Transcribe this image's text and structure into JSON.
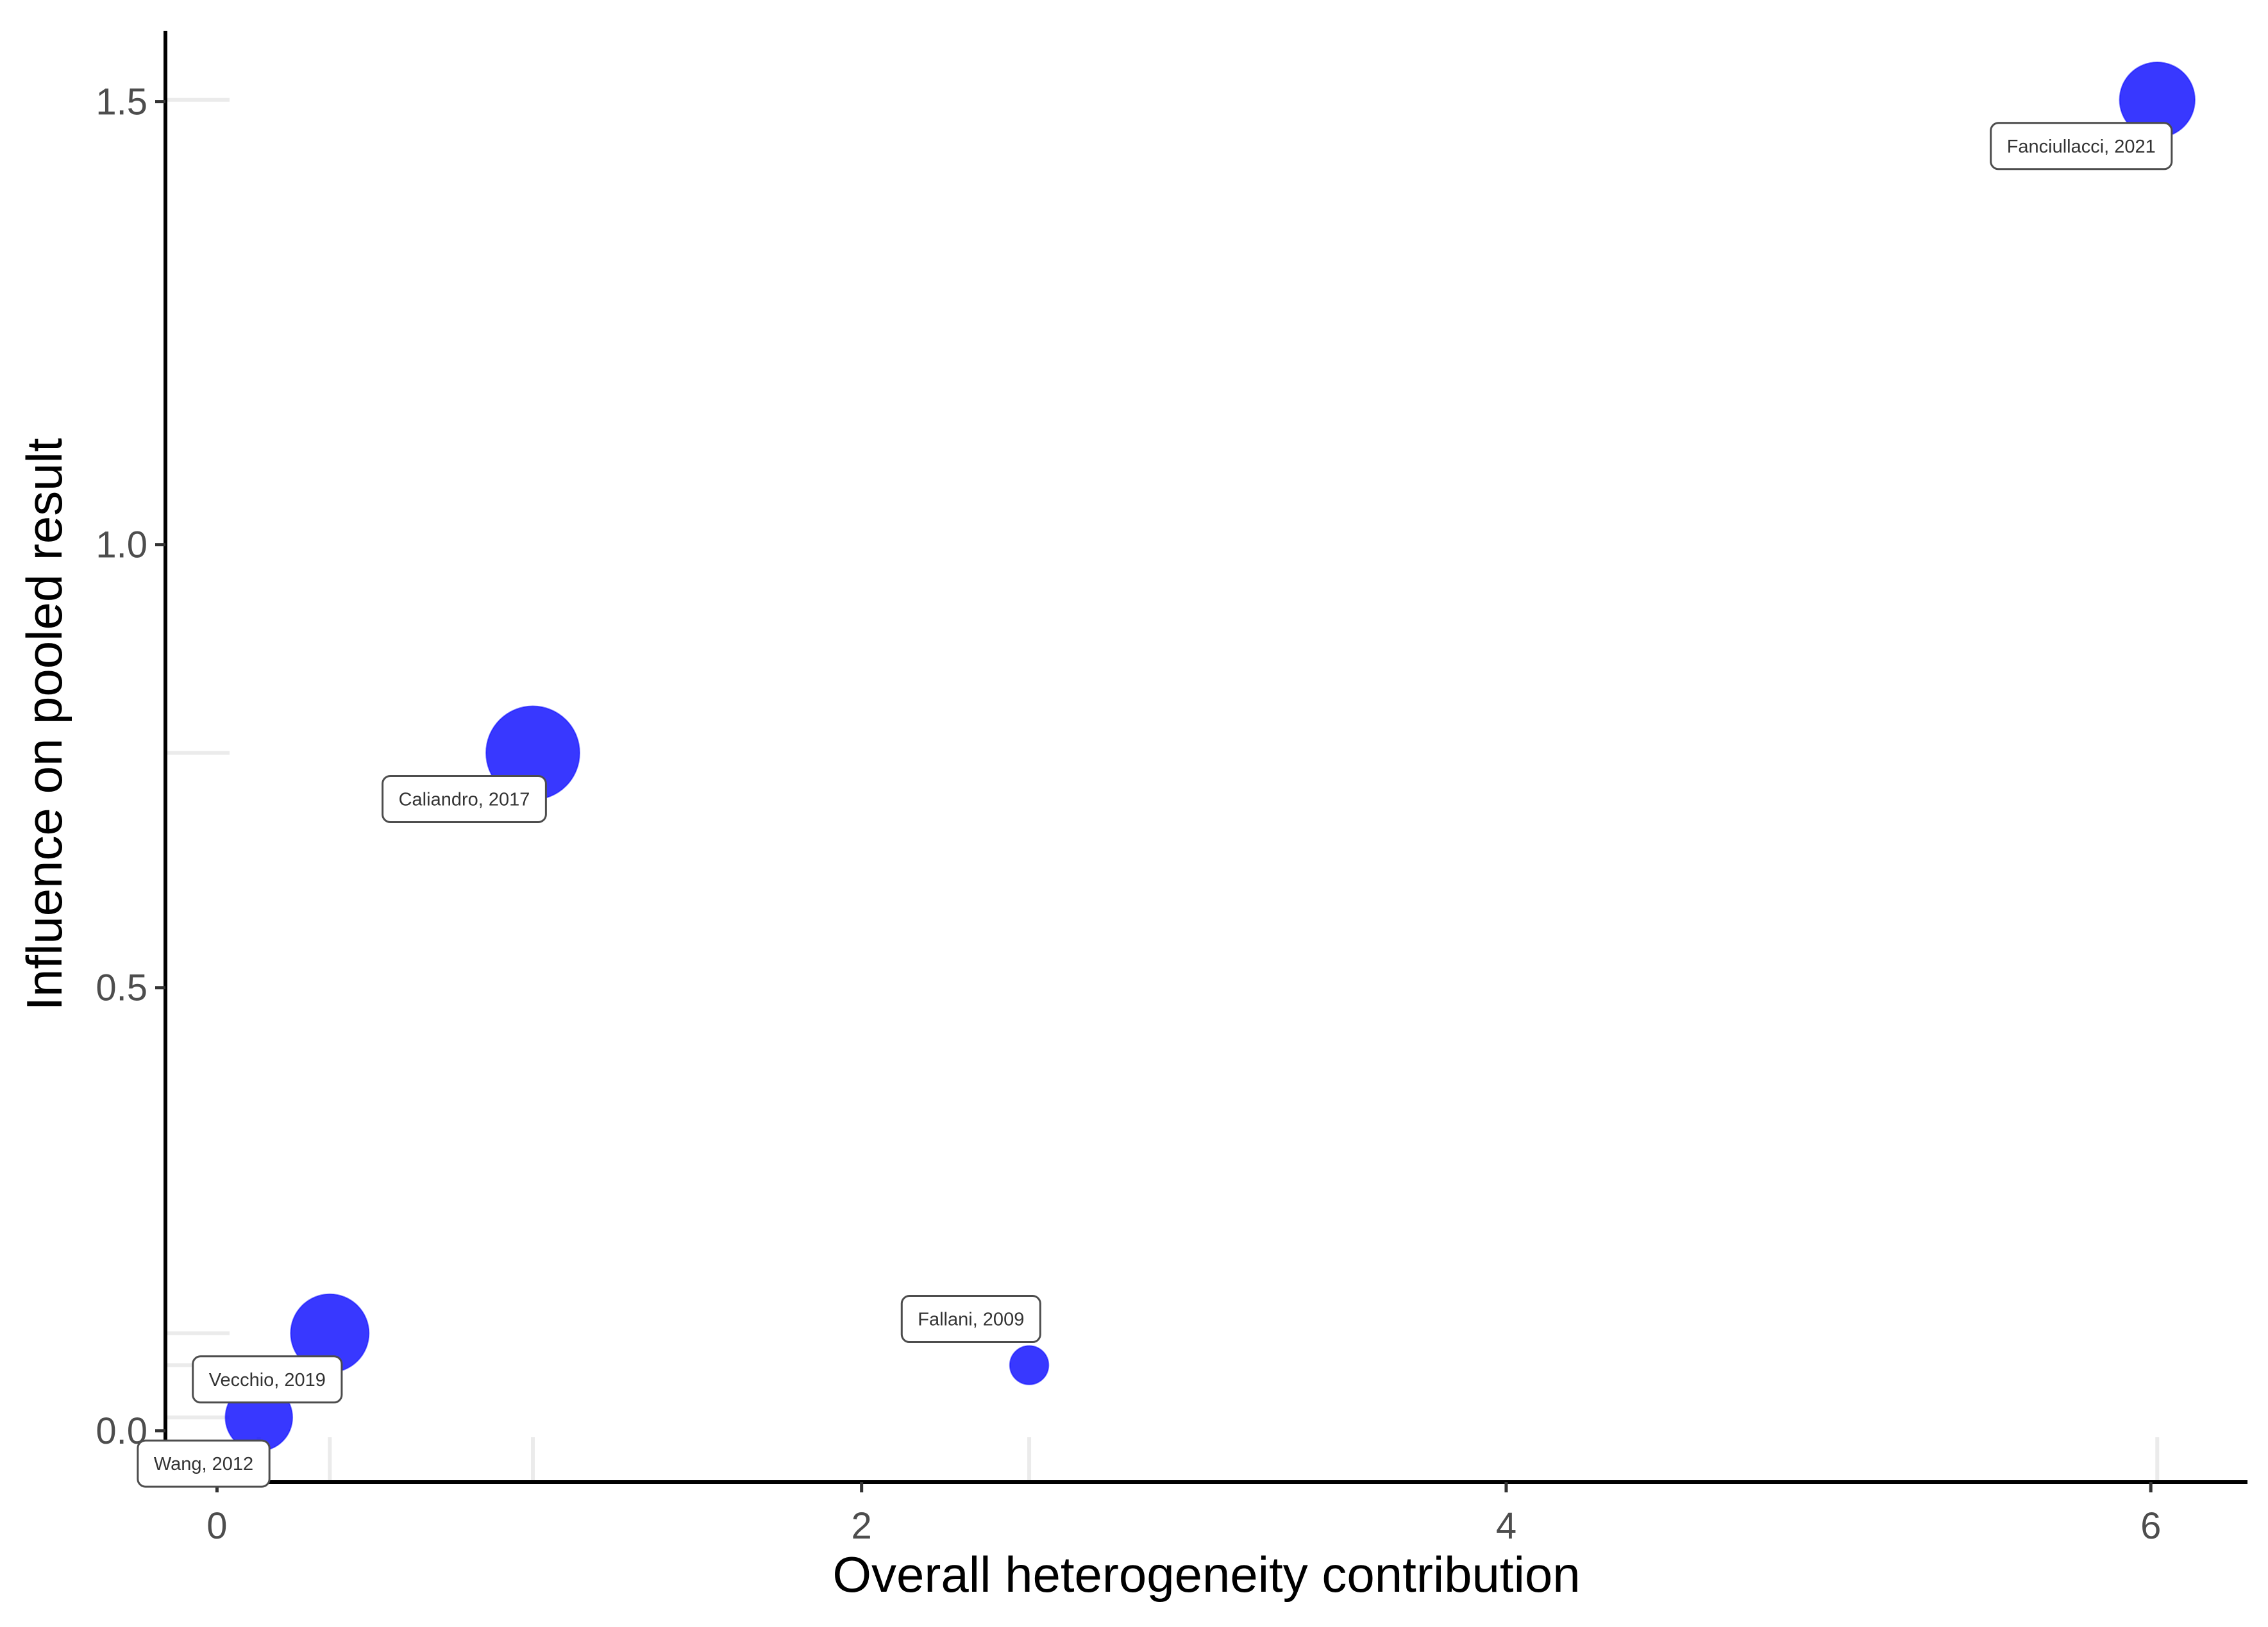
{
  "chart_data": {
    "type": "scatter",
    "title": "",
    "xlabel": "Overall heterogeneity contribution",
    "ylabel": "Influence on pooled result",
    "xlim": [
      -0.16,
      6.3
    ],
    "ylim": [
      -0.058,
      1.58
    ],
    "x_ticks": [
      0,
      2,
      4,
      6
    ],
    "y_ticks": [
      0.0,
      0.5,
      1.0,
      1.5
    ],
    "x_tick_labels": [
      "0",
      "2",
      "4",
      "6"
    ],
    "y_tick_labels": [
      "0.0",
      "0.5",
      "1.0",
      "1.5"
    ],
    "grid": "faint marks at each study's x and y value",
    "legend": "none",
    "point_color": "#0000ff",
    "point_opacity": 0.78,
    "points": [
      {
        "label": "Wang, 2012",
        "x": 0.13,
        "y": 0.015,
        "weight": 0.65,
        "label_side": "below"
      },
      {
        "label": "Vecchio, 2019",
        "x": 0.35,
        "y": 0.11,
        "weight": 1.0,
        "label_side": "below"
      },
      {
        "label": "Caliandro, 2017",
        "x": 0.98,
        "y": 0.765,
        "weight": 1.6,
        "label_side": "below"
      },
      {
        "label": "Fallani, 2009",
        "x": 2.52,
        "y": 0.074,
        "weight": 0.1,
        "label_side": "above"
      },
      {
        "label": "Fanciullacci, 2021",
        "x": 6.02,
        "y": 1.502,
        "weight": 0.9,
        "label_side": "below"
      }
    ]
  }
}
